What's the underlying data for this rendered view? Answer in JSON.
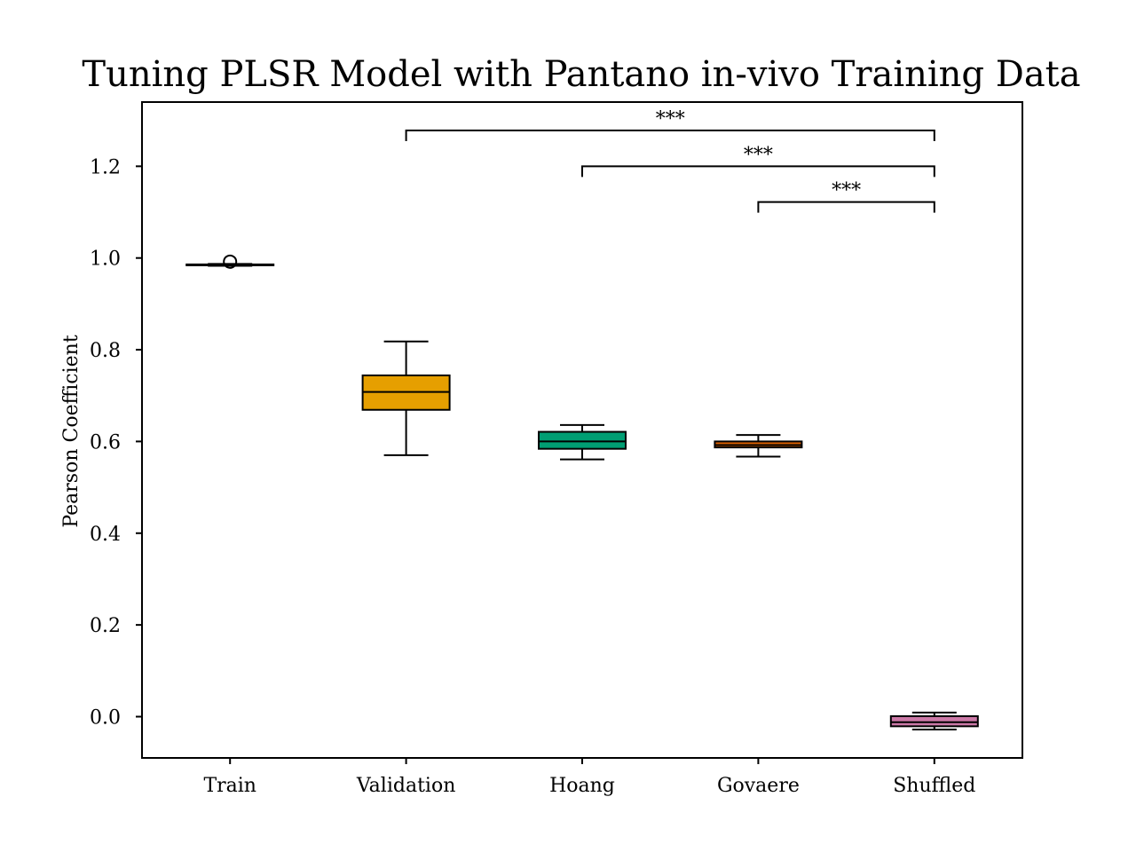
{
  "chart_data": {
    "type": "box",
    "title": "Tuning PLSR Model with Pantano in-vivo Training Data",
    "ylabel": "Pearson Coefficient",
    "xlabel": "",
    "ylim": [
      -0.09,
      1.34
    ],
    "yticks": [
      "0.0",
      "0.2",
      "0.4",
      "0.6",
      "0.8",
      "1.0",
      "1.2"
    ],
    "categories": [
      "Train",
      "Validation",
      "Hoang",
      "Govaere",
      "Shuffled"
    ],
    "boxes": [
      {
        "name": "Train",
        "color": "#000000",
        "whisker_low": 0.983,
        "q1": 0.984,
        "median": 0.985,
        "q3": 0.986,
        "whisker_high": 0.987,
        "outliers": [
          0.992
        ]
      },
      {
        "name": "Validation",
        "color": "#E69F00",
        "whisker_low": 0.57,
        "q1": 0.669,
        "median": 0.708,
        "q3": 0.744,
        "whisker_high": 0.818,
        "outliers": []
      },
      {
        "name": "Hoang",
        "color": "#009E73",
        "whisker_low": 0.561,
        "q1": 0.584,
        "median": 0.6,
        "q3": 0.621,
        "whisker_high": 0.636,
        "outliers": []
      },
      {
        "name": "Govaere",
        "color": "#D55E00",
        "whisker_low": 0.567,
        "q1": 0.587,
        "median": 0.592,
        "q3": 0.6,
        "whisker_high": 0.614,
        "outliers": []
      },
      {
        "name": "Shuffled",
        "color": "#CC79A7",
        "whisker_low": -0.028,
        "q1": -0.021,
        "median": -0.012,
        "q3": 0.001,
        "whisker_high": 0.009,
        "outliers": []
      }
    ],
    "significance": [
      {
        "from": "Validation",
        "to": "Shuffled",
        "y": 1.278,
        "label": "***"
      },
      {
        "from": "Hoang",
        "to": "Shuffled",
        "y": 1.2,
        "label": "***"
      },
      {
        "from": "Govaere",
        "to": "Shuffled",
        "y": 1.122,
        "label": "***"
      }
    ],
    "grid": false,
    "legend": "none"
  }
}
